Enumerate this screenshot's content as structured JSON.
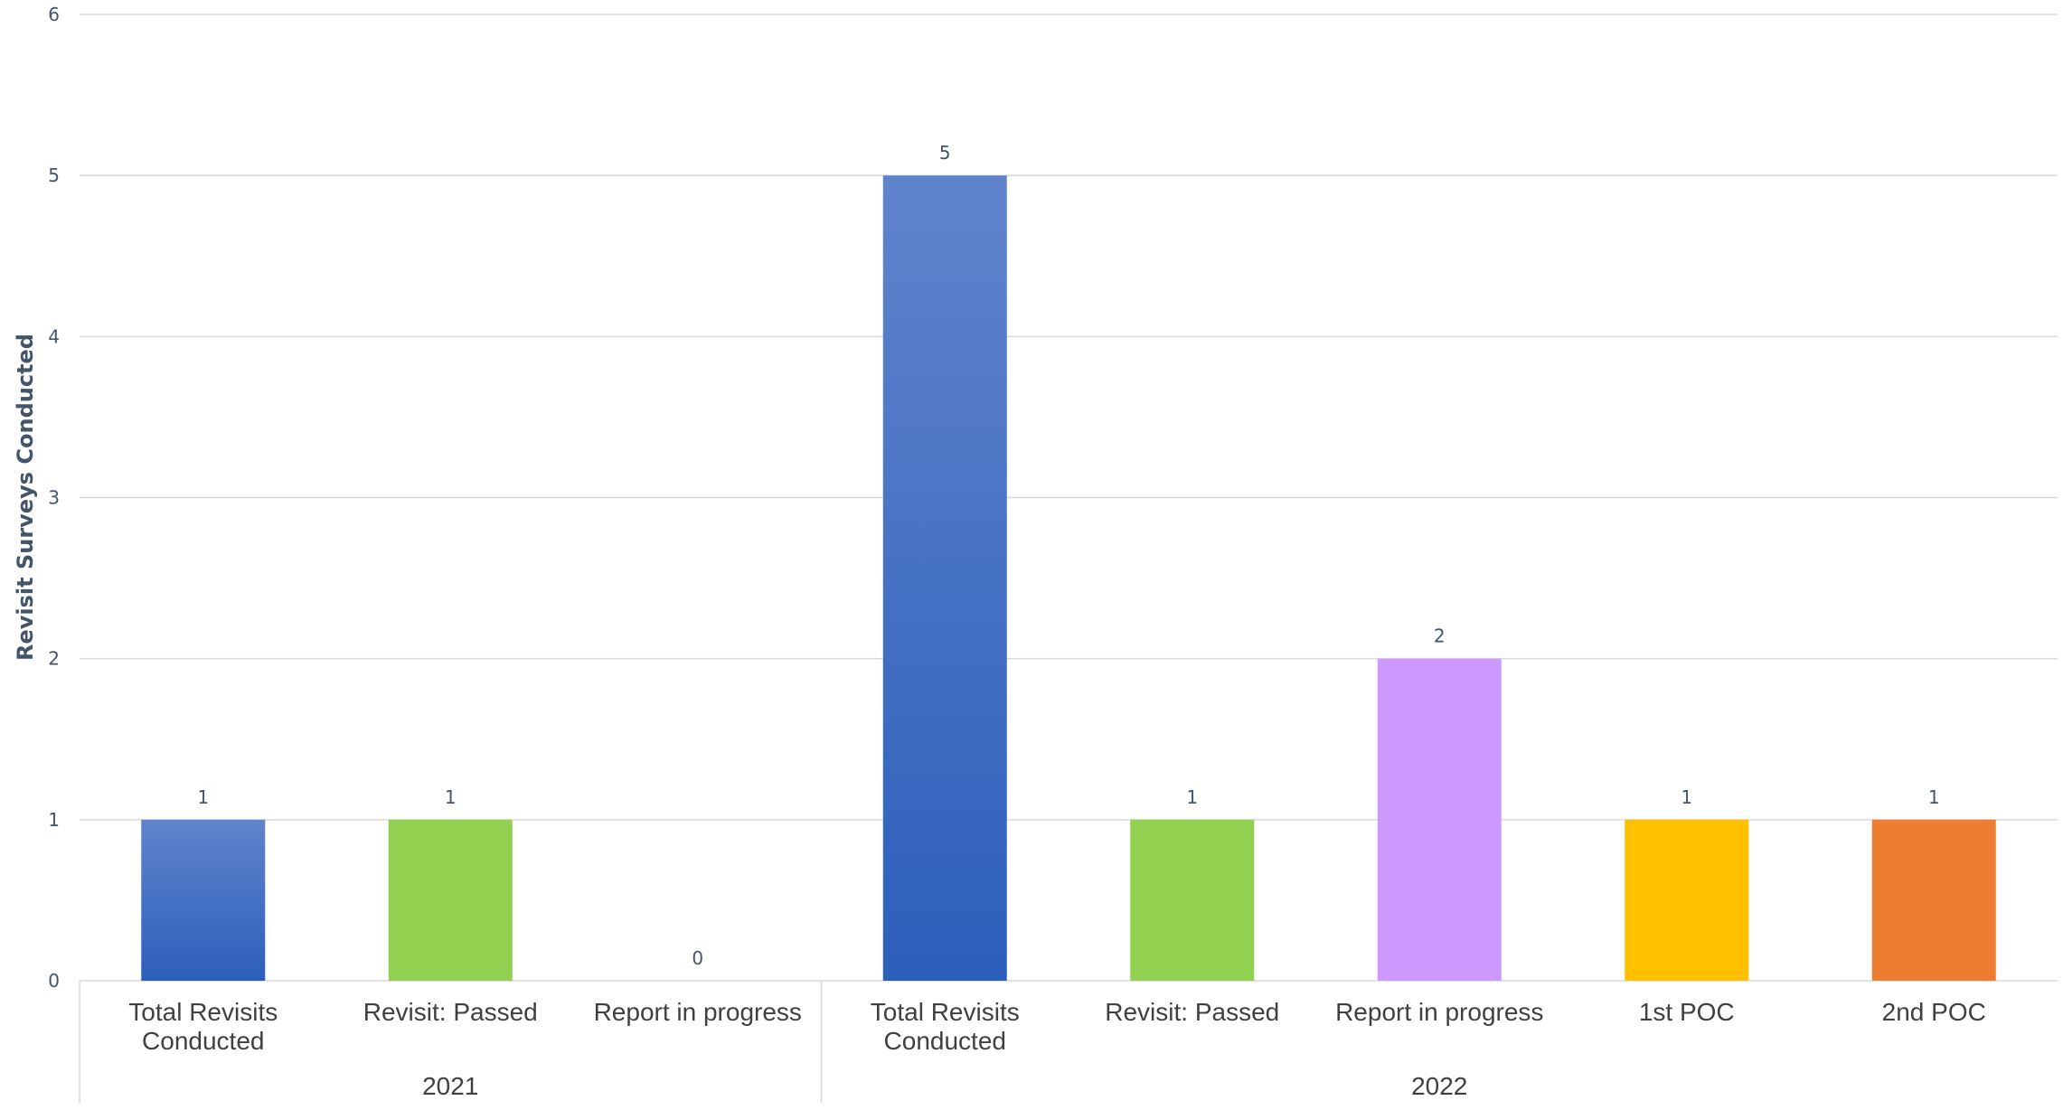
{
  "chart_data": {
    "type": "bar",
    "title": "",
    "xlabel": "",
    "ylabel": "Revisit Surveys Conducted",
    "ylim": [
      0,
      6
    ],
    "yticks": [
      0,
      1,
      2,
      3,
      4,
      5,
      6
    ],
    "grid": true,
    "legend": "none",
    "groups": [
      {
        "label": "2021",
        "bars": [
          {
            "category": "Total Revisits Conducted",
            "lines": [
              "Total Revisits",
              "Conducted"
            ],
            "value": 1,
            "color": "#4472c4",
            "gradient": true
          },
          {
            "category": "Revisit: Passed",
            "lines": [
              "Revisit: Passed"
            ],
            "value": 1,
            "color": "#92d050",
            "gradient": false
          },
          {
            "category": "Report in progress",
            "lines": [
              "Report in progress"
            ],
            "value": 0,
            "color": "#cc99ff",
            "gradient": false
          }
        ]
      },
      {
        "label": "2022",
        "bars": [
          {
            "category": "Total Revisits Conducted",
            "lines": [
              "Total Revisits",
              "Conducted"
            ],
            "value": 5,
            "color": "#4472c4",
            "gradient": true
          },
          {
            "category": "Revisit: Passed",
            "lines": [
              "Revisit: Passed"
            ],
            "value": 1,
            "color": "#92d050",
            "gradient": false
          },
          {
            "category": "Report in progress",
            "lines": [
              "Report in progress"
            ],
            "value": 2,
            "color": "#cc99ff",
            "gradient": false
          },
          {
            "category": "1st POC",
            "lines": [
              "1st POC"
            ],
            "value": 1,
            "color": "#ffc000",
            "gradient": false
          },
          {
            "category": "2nd POC",
            "lines": [
              "2nd POC"
            ],
            "value": 1,
            "color": "#ed7d31",
            "gradient": false
          }
        ]
      }
    ],
    "colors": {
      "gridline": "#d9d9d9",
      "axis_text": "#44546a",
      "category_text": "#404040",
      "gradient_top": "#6084cc",
      "gradient_bottom": "#2c5fbb"
    }
  }
}
